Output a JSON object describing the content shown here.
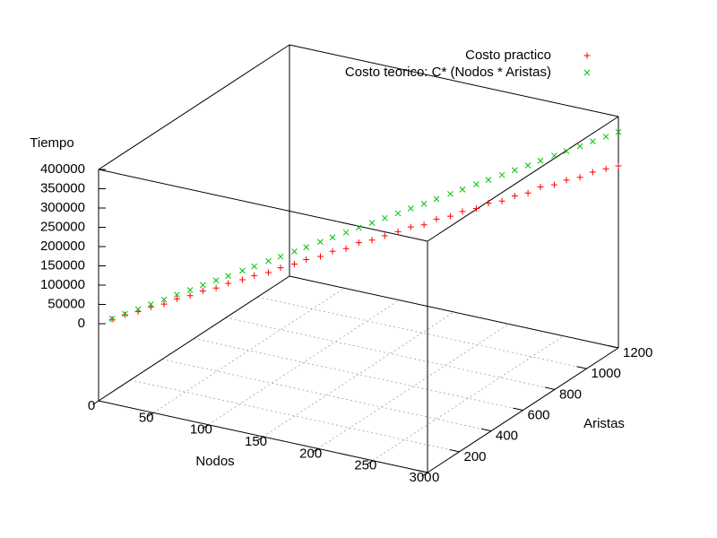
{
  "chart_data": {
    "type": "scatter3d",
    "x_label": "Nodos",
    "y_label": "Aristas",
    "z_label": "Tiempo",
    "x": [
      8,
      15,
      23,
      30,
      38,
      45,
      53,
      60,
      68,
      75,
      83,
      90,
      98,
      105,
      113,
      120,
      128,
      135,
      143,
      150,
      158,
      165,
      173,
      180,
      188,
      195,
      203,
      210,
      218,
      225,
      233,
      240,
      248,
      255,
      263,
      270,
      278,
      285,
      293,
      300
    ],
    "y": [
      30,
      62,
      90,
      122,
      150,
      182,
      210,
      242,
      270,
      298,
      332,
      358,
      392,
      420,
      452,
      478,
      512,
      540,
      570,
      602,
      630,
      662,
      690,
      722,
      750,
      780,
      812,
      840,
      872,
      900,
      930,
      962,
      990,
      1020,
      1052,
      1080,
      1110,
      1142,
      1170,
      1200
    ],
    "series": [
      {
        "name": "Costo practico",
        "color": "#ff0000",
        "marker": "plus",
        "values": [
          8000,
          15500,
          21000,
          29000,
          34000,
          43000,
          49000,
          57000,
          62000,
          71000,
          76000,
          84000,
          88000,
          97000,
          103000,
          112000,
          116000,
          126000,
          130000,
          141000,
          145000,
          152000,
          160000,
          168000,
          171000,
          182000,
          186000,
          195000,
          199000,
          210000,
          212000,
          221000,
          226000,
          238000,
          240000,
          249000,
          253000,
          262000,
          268000,
          272000
        ]
      },
      {
        "name": "Costo teorico: C* (Nodos * Aristas)",
        "color": "#00c000",
        "marker": "cross",
        "values": [
          9600,
          18000,
          27600,
          36000,
          45600,
          54000,
          63600,
          72000,
          81600,
          90000,
          99600,
          108000,
          117600,
          126000,
          135600,
          144000,
          153600,
          162000,
          171600,
          180000,
          189600,
          198000,
          207600,
          216000,
          225600,
          234000,
          243600,
          252000,
          261600,
          270000,
          279600,
          288000,
          297600,
          306000,
          315600,
          324000,
          333600,
          342000,
          351600,
          360000
        ]
      }
    ],
    "xlim": [
      0,
      300
    ],
    "xticks": [
      0,
      50,
      100,
      150,
      200,
      250,
      300
    ],
    "ylim": [
      0,
      1200
    ],
    "yticks": [
      0,
      200,
      400,
      600,
      800,
      1000,
      1200
    ],
    "zlim": [
      0,
      400000
    ],
    "zticks": [
      0,
      50000,
      100000,
      150000,
      200000,
      250000,
      300000,
      350000,
      400000
    ],
    "ticslevel": 0.5,
    "grid": true,
    "legend": "top right"
  }
}
